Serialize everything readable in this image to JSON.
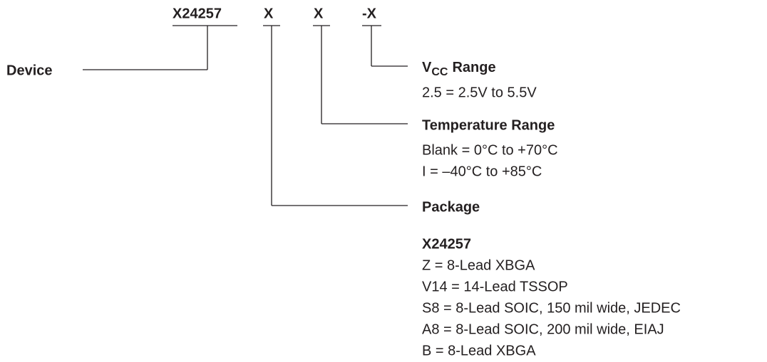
{
  "header": {
    "parts": [
      "X24257",
      "X",
      "X",
      "-X"
    ]
  },
  "device": {
    "label": "Device"
  },
  "vcc": {
    "label": "V",
    "subscript": "CC",
    "suffix": "Range",
    "options": [
      "2.5 = 2.5V to 5.5V"
    ]
  },
  "temperature": {
    "label": "Temperature Range",
    "options": [
      "Blank = 0°C to +70°C",
      "I = –40°C to +85°C"
    ]
  },
  "package": {
    "label": "Package",
    "device": "X24257",
    "options": [
      "Z = 8-Lead XBGA",
      "V14 = 14-Lead TSSOP",
      "S8 = 8-Lead SOIC, 150 mil wide, JEDEC",
      "A8 = 8-Lead SOIC, 200 mil wide, EIAJ",
      "B = 8-Lead XBGA"
    ]
  }
}
